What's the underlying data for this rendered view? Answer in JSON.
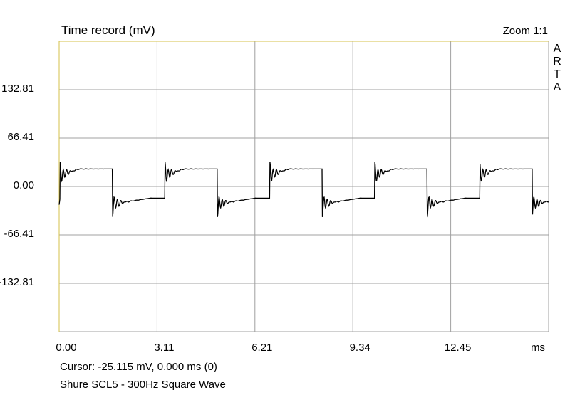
{
  "header": {
    "title": "Time record (mV)",
    "zoom": "Zoom 1:1",
    "brand_letters": [
      "A",
      "R",
      "T",
      "A"
    ]
  },
  "chart_data": {
    "type": "line",
    "title": "Time record (mV)",
    "xlabel": "ms",
    "ylabel": "",
    "x_ticks": [
      "0.00",
      "3.11",
      "6.21",
      "9.34",
      "12.45"
    ],
    "x_unit": "ms",
    "y_ticks": [
      "132.81",
      "66.41",
      "0.00",
      "-66.41",
      "-132.81"
    ],
    "xlim": [
      0,
      15.55
    ],
    "ylim": [
      -199.2,
      199.2
    ],
    "grid": true,
    "series": [
      {
        "name": "",
        "color": "#000000",
        "period_ms": 3.333,
        "high_level_mv": 20,
        "low_level_mv": -20,
        "overshoot_mv": 38,
        "x_start_ms": 0.0,
        "x_end_ms": 15.55
      }
    ]
  },
  "status": {
    "cursor": "Cursor: -25.115 mV,    0.000 ms  (0)",
    "caption": "Shure SCL5 - 300Hz Square Wave"
  },
  "colors": {
    "plot_border": "#d4c04a",
    "grid": "#a0a0a0",
    "trace": "#000000"
  }
}
